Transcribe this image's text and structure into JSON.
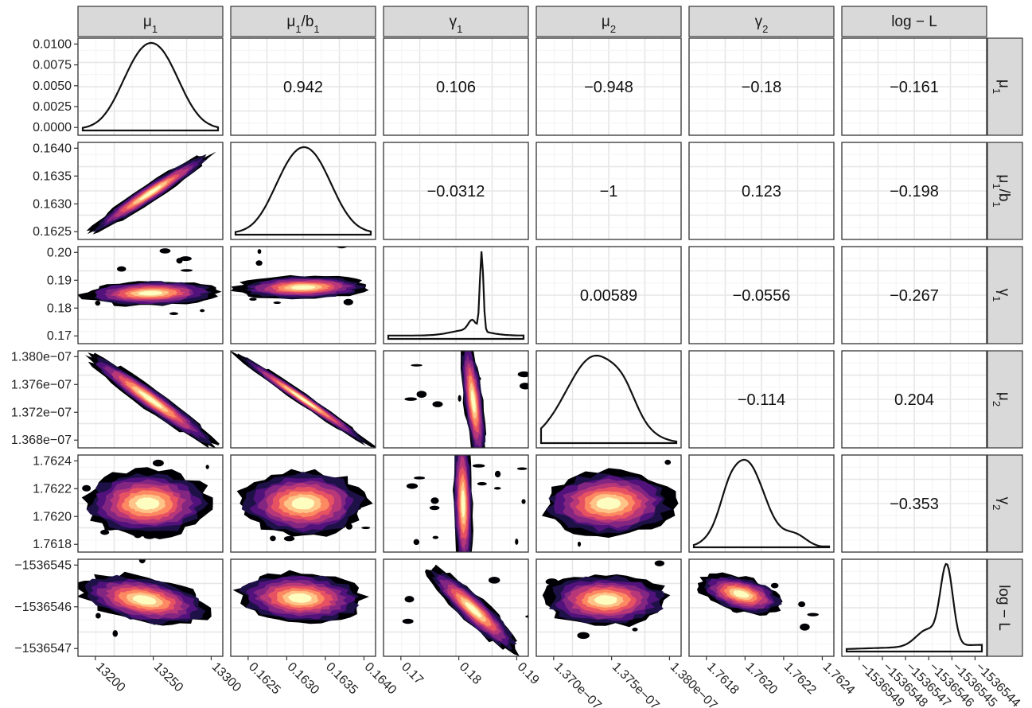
{
  "chart_data": {
    "type": "pairs-plot",
    "variables": [
      "μ1",
      "μ1/b1",
      "γ1",
      "μ2",
      "γ2",
      "log − L"
    ],
    "strip_labels": {
      "columns": [
        {
          "base": "μ",
          "sub": "1",
          "tail": ""
        },
        {
          "base": "μ",
          "sub": "1",
          "tail": "/b",
          "sub2": "1"
        },
        {
          "base": "γ",
          "sub": "1",
          "tail": ""
        },
        {
          "base": "μ",
          "sub": "2",
          "tail": ""
        },
        {
          "base": "γ",
          "sub": "2",
          "tail": ""
        },
        {
          "base": "log − L",
          "sub": "",
          "tail": ""
        }
      ]
    },
    "correlations": [
      {
        "row": 0,
        "col": 1,
        "value": "0.942"
      },
      {
        "row": 0,
        "col": 2,
        "value": "0.106"
      },
      {
        "row": 0,
        "col": 3,
        "value": "−0.948"
      },
      {
        "row": 0,
        "col": 4,
        "value": "−0.18"
      },
      {
        "row": 0,
        "col": 5,
        "value": "−0.161"
      },
      {
        "row": 1,
        "col": 2,
        "value": "−0.0312"
      },
      {
        "row": 1,
        "col": 3,
        "value": "−1"
      },
      {
        "row": 1,
        "col": 4,
        "value": "0.123"
      },
      {
        "row": 1,
        "col": 5,
        "value": "−0.198"
      },
      {
        "row": 2,
        "col": 3,
        "value": "0.00589"
      },
      {
        "row": 2,
        "col": 4,
        "value": "−0.0556"
      },
      {
        "row": 2,
        "col": 5,
        "value": "−0.267"
      },
      {
        "row": 3,
        "col": 4,
        "value": "−0.114"
      },
      {
        "row": 3,
        "col": 5,
        "value": "0.204"
      },
      {
        "row": 4,
        "col": 5,
        "value": "−0.353"
      }
    ],
    "y_ticks": [
      [
        "0.0100",
        "0.0075",
        "0.0050",
        "0.0025",
        "0.0000"
      ],
      [
        "0.1640",
        "0.1635",
        "0.1630",
        "0.1625"
      ],
      [
        "0.20",
        "0.19",
        "0.18",
        "0.17"
      ],
      [
        "1.380e−07",
        "1.376e−07",
        "1.372e−07",
        "1.368e−07"
      ],
      [
        "1.7624",
        "1.7622",
        "1.7620",
        "1.7618"
      ],
      [
        "−1536545",
        "−1536546",
        "−1536547"
      ]
    ],
    "x_ticks": [
      [
        "13200",
        "13250",
        "13300"
      ],
      [
        "0.1625",
        "0.1630",
        "0.1635",
        "0.1640"
      ],
      [
        "0.17",
        "0.18",
        "0.19"
      ],
      [
        "1.370e−07",
        "1.375e−07",
        "1.380e−07"
      ],
      [
        "1.7618",
        "1.7620",
        "1.7622",
        "1.7624"
      ],
      [
        "−1536549",
        "−1536548",
        "−1536547",
        "−1536546",
        "−1536545",
        "−1536544"
      ]
    ],
    "density_shapes": {
      "0": "unimodal-broad",
      "1": "unimodal-broad",
      "2": "sharp-peak",
      "3": "unimodal-skew",
      "4": "unimodal-skew-left",
      "5": "peak-right-heavy-left-tail"
    },
    "contour_palette": [
      "#000004",
      "#1d1147",
      "#51127c",
      "#832681",
      "#b73779",
      "#e75263",
      "#fc8961",
      "#fec488",
      "#fcfdbf"
    ]
  },
  "colors": {
    "strip_bg": "#d9d9d9",
    "panel_border": "#333333",
    "grid_major": "#e6e6e6",
    "grid_minor": "#f3f3f3"
  }
}
